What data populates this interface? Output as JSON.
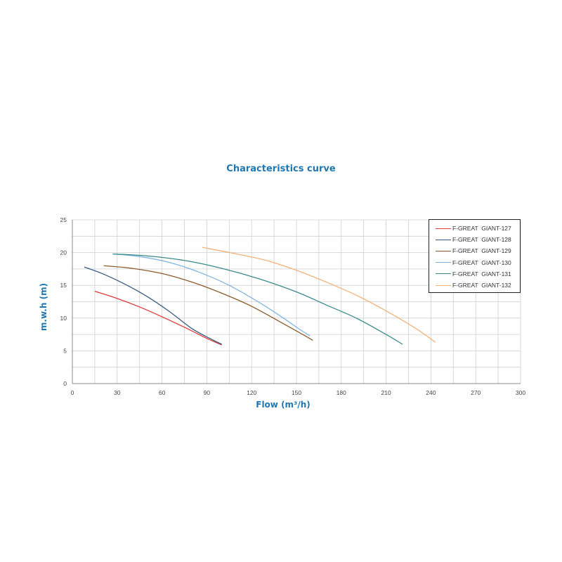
{
  "chart_data": {
    "type": "line",
    "title": "Characteristics curve",
    "xlabel": "Flow (m³/h)",
    "ylabel": "m.w.h (m)",
    "xlim": [
      0,
      300
    ],
    "ylim": [
      0,
      25
    ],
    "xticks": [
      0,
      30,
      60,
      90,
      120,
      150,
      180,
      210,
      240,
      270,
      300
    ],
    "yticks": [
      0,
      5,
      10,
      15,
      20,
      25
    ],
    "grid": true,
    "legend_position": "top-right",
    "series": [
      {
        "name": "F-GREAT  GIANT-127",
        "color": "#e03a3a",
        "x": [
          15,
          30,
          45,
          60,
          75,
          90,
          100
        ],
        "y": [
          14.1,
          13.0,
          11.7,
          10.2,
          8.6,
          6.9,
          5.9
        ]
      },
      {
        "name": "F-GREAT  GIANT-128",
        "color": "#3a5a80",
        "x": [
          8,
          20,
          35,
          50,
          65,
          80,
          92,
          100
        ],
        "y": [
          17.8,
          16.8,
          15.2,
          13.3,
          11.0,
          8.4,
          6.9,
          6.0
        ]
      },
      {
        "name": "F-GREAT  GIANT-129",
        "color": "#8b5a2b",
        "x": [
          21,
          40,
          60,
          80,
          100,
          120,
          140,
          155,
          161
        ],
        "y": [
          18.0,
          17.6,
          16.8,
          15.5,
          13.8,
          11.8,
          9.3,
          7.4,
          6.6
        ]
      },
      {
        "name": "F-GREAT  GIANT-130",
        "color": "#7fb4e0",
        "x": [
          27,
          45,
          65,
          85,
          105,
          125,
          140,
          152,
          159
        ],
        "y": [
          19.8,
          19.4,
          18.5,
          17.0,
          15.0,
          12.4,
          10.2,
          8.3,
          7.3
        ]
      },
      {
        "name": "F-GREAT  GIANT-131",
        "color": "#3a8a8c",
        "x": [
          27,
          50,
          75,
          100,
          125,
          150,
          170,
          190,
          210,
          221
        ],
        "y": [
          19.8,
          19.5,
          18.8,
          17.6,
          16.0,
          14.0,
          12.0,
          10.0,
          7.5,
          6.0
        ]
      },
      {
        "name": "F-GREAT  GIANT-132",
        "color": "#f2b27a",
        "x": [
          87,
          110,
          130,
          150,
          170,
          190,
          210,
          230,
          243
        ],
        "y": [
          20.8,
          19.8,
          18.8,
          17.3,
          15.5,
          13.5,
          11.1,
          8.4,
          6.3
        ]
      }
    ]
  }
}
